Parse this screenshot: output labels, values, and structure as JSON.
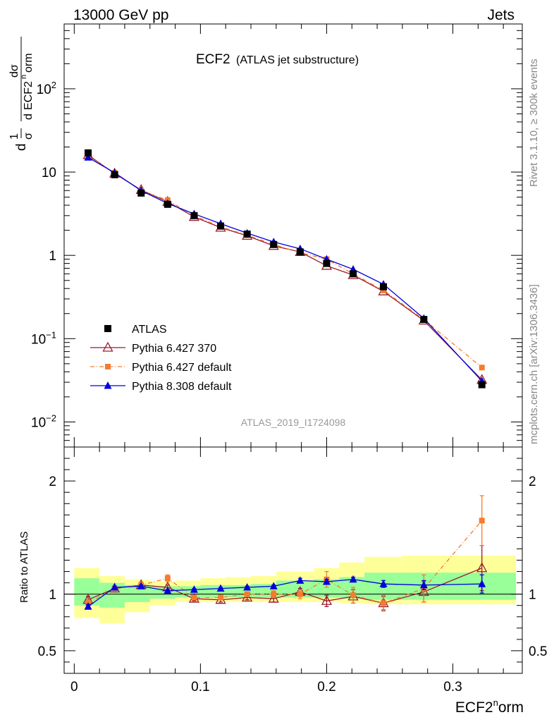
{
  "header": {
    "left": "13000 GeV pp",
    "right": "Jets"
  },
  "side_labels": {
    "top": "Rivet 3.1.10, ≥ 300k events",
    "bottom": "mcplots.cern.ch [arXiv:1306.3436]"
  },
  "main_plot": {
    "title": "ECF2",
    "subtitle": "(ATLAS jet substructure)",
    "analysis_id": "ATLAS_2019_I1724098",
    "ylabel_parts": {
      "one_over_sigma_num": "1",
      "one_over_sigma_den": "σ",
      "dsig": "dσ",
      "d_prefix": "d",
      "ecf": "ECF2",
      "n": "n",
      "orm": "orm",
      "d": "d"
    },
    "y_ticks": [
      {
        "value": 0.01,
        "base": "10",
        "exp": "−2"
      },
      {
        "value": 0.1,
        "base": "10",
        "exp": "−1"
      },
      {
        "value": 1,
        "base": "1",
        "exp": ""
      },
      {
        "value": 10,
        "base": "10",
        "exp": ""
      },
      {
        "value": 100,
        "base": "10",
        "exp": "2"
      }
    ]
  },
  "ratio_plot": {
    "ylabel": "Ratio to ATLAS",
    "y_ticks": [
      {
        "value": 0.5,
        "label": "0.5"
      },
      {
        "value": 1,
        "label": "1"
      },
      {
        "value": 2,
        "label": "2"
      }
    ]
  },
  "x_axis": {
    "label_main": "ECF2",
    "label_sup": "n",
    "label_tail": "orm",
    "ticks": [
      {
        "value": 0,
        "label": "0"
      },
      {
        "value": 0.1,
        "label": "0.1"
      },
      {
        "value": 0.2,
        "label": "0.2"
      },
      {
        "value": 0.3,
        "label": "0.3"
      }
    ]
  },
  "legend": [
    {
      "label": "ATLAS",
      "color": "#000000",
      "marker": "square-filled",
      "line": "none"
    },
    {
      "label": "Pythia 6.427 370",
      "color": "#9b1b30",
      "marker": "triangle-open",
      "line": "solid"
    },
    {
      "label": "Pythia 6.427 default",
      "color": "#f47c2c",
      "marker": "square-filled",
      "line": "dashdot"
    },
    {
      "label": "Pythia 8.308 default",
      "color": "#0000dd",
      "marker": "triangle-filled",
      "line": "solid"
    }
  ],
  "chart_data": {
    "type": "scatter",
    "x_range": [
      -0.008,
      0.355
    ],
    "ylim_main": [
      0.005,
      600
    ],
    "yscale_main": "log",
    "ylim_ratio": [
      0.3,
      2.3
    ],
    "ratio_bands": {
      "edges": [
        0,
        0.02,
        0.04,
        0.06,
        0.08,
        0.1,
        0.12,
        0.14,
        0.16,
        0.18,
        0.19,
        0.21,
        0.23,
        0.26,
        0.29,
        0.35
      ],
      "yellow_lo": [
        0.79,
        0.74,
        0.84,
        0.9,
        0.93,
        0.93,
        0.93,
        0.93,
        0.93,
        0.93,
        0.93,
        0.92,
        0.91,
        0.91,
        0.91
      ],
      "yellow_hi": [
        1.23,
        1.16,
        1.13,
        1.11,
        1.12,
        1.14,
        1.15,
        1.16,
        1.2,
        1.2,
        1.23,
        1.28,
        1.33,
        1.34,
        1.34
      ],
      "green_lo": [
        0.9,
        0.88,
        0.93,
        0.96,
        0.97,
        0.97,
        0.97,
        0.97,
        0.97,
        0.97,
        0.97,
        0.96,
        0.95,
        0.95,
        0.95
      ],
      "green_hi": [
        1.14,
        1.1,
        1.08,
        1.07,
        1.07,
        1.08,
        1.08,
        1.09,
        1.12,
        1.12,
        1.13,
        1.15,
        1.19,
        1.19,
        1.19
      ]
    },
    "series": [
      {
        "name": "ATLAS",
        "color": "#000000",
        "x": [
          0.011,
          0.032,
          0.053,
          0.074,
          0.095,
          0.116,
          0.137,
          0.158,
          0.179,
          0.2,
          0.221,
          0.245,
          0.277,
          0.323
        ],
        "y": [
          17.0,
          9.3,
          5.6,
          4.1,
          3.0,
          2.25,
          1.8,
          1.35,
          1.1,
          0.8,
          0.6,
          0.42,
          0.17,
          0.028
        ],
        "ratio": [
          1,
          1,
          1,
          1,
          1,
          1,
          1,
          1,
          1,
          1,
          1,
          1,
          1,
          1
        ]
      },
      {
        "name": "Pythia 6.427 370",
        "color": "#9b1b30",
        "x": [
          0.011,
          0.032,
          0.053,
          0.074,
          0.095,
          0.116,
          0.137,
          0.158,
          0.179,
          0.2,
          0.221,
          0.245,
          0.277,
          0.323
        ],
        "y": [
          16.0,
          9.6,
          6.1,
          4.4,
          2.9,
          2.15,
          1.72,
          1.3,
          1.1,
          0.75,
          0.58,
          0.37,
          0.165,
          0.032
        ],
        "ratio": [
          0.95,
          1.05,
          1.08,
          1.06,
          0.96,
          0.95,
          0.97,
          0.96,
          1.02,
          0.94,
          0.98,
          0.92,
          1.02,
          1.23
        ],
        "ratio_err": [
          0.03,
          0.02,
          0.02,
          0.02,
          0.02,
          0.02,
          0.02,
          0.03,
          0.03,
          0.05,
          0.06,
          0.06,
          0.09,
          0.2
        ]
      },
      {
        "name": "Pythia 6.427 default",
        "color": "#f47c2c",
        "x": [
          0.011,
          0.032,
          0.053,
          0.074,
          0.095,
          0.116,
          0.137,
          0.158,
          0.179,
          0.2,
          0.221,
          0.245,
          0.277,
          0.323
        ],
        "y": [
          15.5,
          9.8,
          6.0,
          4.6,
          3.0,
          2.2,
          1.75,
          1.35,
          1.08,
          0.9,
          0.6,
          0.38,
          0.17,
          0.045
        ],
        "ratio": [
          0.92,
          1.05,
          1.08,
          1.14,
          0.97,
          0.97,
          1.0,
          1.0,
          1.0,
          1.13,
          0.99,
          0.92,
          1.05,
          1.65
        ],
        "ratio_err": [
          0.03,
          0.02,
          0.02,
          0.03,
          0.02,
          0.02,
          0.02,
          0.03,
          0.04,
          0.07,
          0.07,
          0.07,
          0.12,
          0.22
        ]
      },
      {
        "name": "Pythia 8.308 default",
        "color": "#0000dd",
        "x": [
          0.011,
          0.032,
          0.053,
          0.074,
          0.095,
          0.116,
          0.137,
          0.158,
          0.179,
          0.2,
          0.221,
          0.245,
          0.277,
          0.323
        ],
        "y": [
          15.0,
          9.8,
          6.0,
          4.2,
          3.15,
          2.4,
          1.85,
          1.45,
          1.2,
          0.9,
          0.68,
          0.45,
          0.175,
          0.031
        ],
        "ratio": [
          0.89,
          1.06,
          1.07,
          1.03,
          1.04,
          1.05,
          1.06,
          1.07,
          1.12,
          1.11,
          1.13,
          1.09,
          1.08,
          1.09
        ],
        "ratio_err": [
          0.02,
          0.01,
          0.01,
          0.01,
          0.01,
          0.01,
          0.01,
          0.01,
          0.02,
          0.02,
          0.02,
          0.03,
          0.04,
          0.08
        ]
      }
    ]
  }
}
